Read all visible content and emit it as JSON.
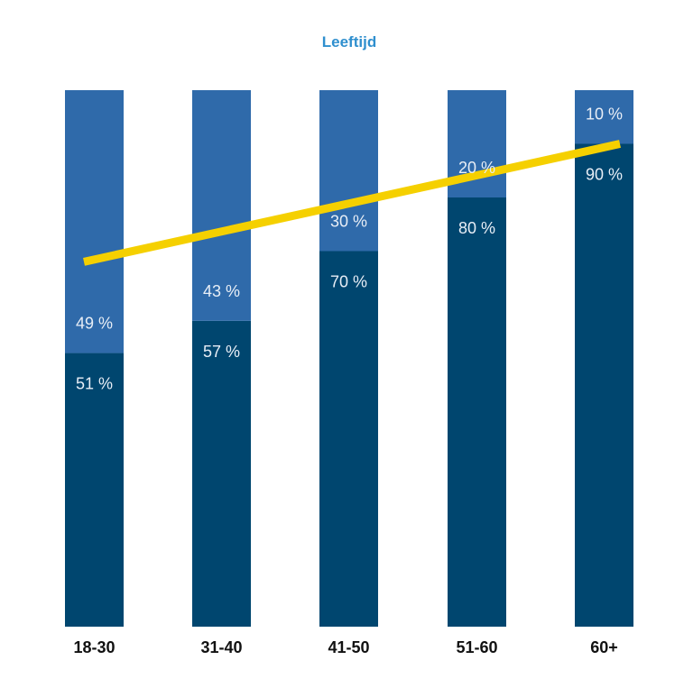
{
  "chart_data": {
    "type": "bar",
    "stacked": true,
    "title": "Leeftijd",
    "xlabel": "",
    "ylabel": "",
    "ylim": [
      0,
      100
    ],
    "grid": false,
    "categories": [
      "18-30",
      "31-40",
      "41-50",
      "51-60",
      "60+"
    ],
    "series": [
      {
        "name": "bottom",
        "color": "#00466f",
        "values": [
          51,
          57,
          70,
          80,
          90
        ],
        "labels": [
          "51 %",
          "57 %",
          "70 %",
          "80 %",
          "90 %"
        ]
      },
      {
        "name": "top",
        "color": "#2f6aaa",
        "values": [
          49,
          43,
          30,
          20,
          10
        ],
        "labels": [
          "49 %",
          "43 %",
          "30 %",
          "20 %",
          "10 %"
        ]
      }
    ],
    "trendline": {
      "color": "#f5d000",
      "start_value": 68,
      "end_value": 90
    }
  }
}
